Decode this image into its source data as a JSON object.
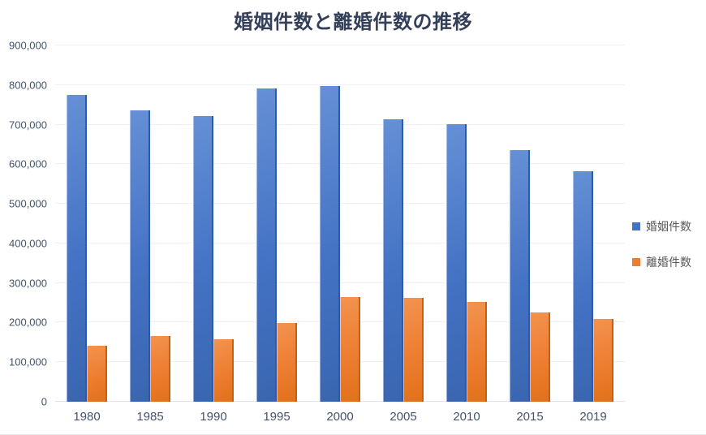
{
  "chart_data": {
    "type": "bar",
    "title": "婚姻件数と離婚件数の推移",
    "categories": [
      "1980",
      "1985",
      "1990",
      "1995",
      "2000",
      "2005",
      "2010",
      "2015",
      "2019"
    ],
    "series": [
      {
        "id": "marriage",
        "name": "婚姻件数",
        "color": "#4472C4",
        "color_light": "#6590d6",
        "color_dark": "#3a66b0",
        "color_edge": "#2e5aa7",
        "values": [
          774702,
          735850,
          722138,
          791888,
          798138,
          714265,
          700214,
          635156,
          583000
        ]
      },
      {
        "id": "divorce",
        "name": "離婚件数",
        "color": "#ED7D31",
        "color_light": "#f2934f",
        "color_dark": "#e2711a",
        "color_edge": "#c95f10",
        "values": [
          141689,
          166640,
          157608,
          199016,
          264246,
          261917,
          251378,
          226215,
          210000
        ]
      }
    ],
    "ylim": [
      0,
      900000
    ],
    "ytick_step": 100000,
    "ytick_labels": [
      "0",
      "100,000",
      "200,000",
      "300,000",
      "400,000",
      "500,000",
      "600,000",
      "700,000",
      "800,000",
      "900,000"
    ],
    "grid": true,
    "legend_position": "right",
    "background": "#ffffff",
    "gridline_color": "#f1f1f3",
    "axis_text_color": "#44546a",
    "legend_text_color": "#595959",
    "title_color": "#34405a"
  }
}
